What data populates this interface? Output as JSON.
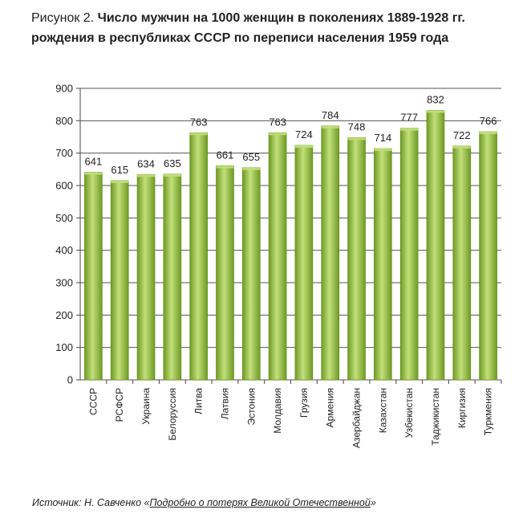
{
  "caption": {
    "lead": "Рисунок 2. ",
    "line1": "Число мужчин на 1000 женщин в поколениях 1889-1928 гг.",
    "line2": "рождения в республиках СССР по переписи населения 1959 года"
  },
  "source": {
    "prefix": "Источник: Н. Савченко «",
    "link_text": "Подробно о потерях Великой Отечественной",
    "suffix": "»"
  },
  "colors": {
    "bar_light": "#c2e07a",
    "bar_dark": "#6f9a24",
    "grid": "#555555",
    "axis": "#444444"
  },
  "chart_data": {
    "type": "bar",
    "title": "Число мужчин на 1000 женщин в поколениях 1889-1928 гг. рождения в республиках СССР по переписи населения 1959 года",
    "categories": [
      "СССР",
      "РСФСР",
      "Украина",
      "Белоруссия",
      "Литва",
      "Латвия",
      "Эстония",
      "Молдавия",
      "Грузия",
      "Армения",
      "Азербайджан",
      "Казахстан",
      "Узбекистан",
      "Таджикистан",
      "Киргизия",
      "Туркмения"
    ],
    "values": [
      641,
      615,
      634,
      635,
      763,
      661,
      655,
      763,
      724,
      784,
      748,
      714,
      777,
      832,
      722,
      766
    ],
    "ylim": [
      0,
      900
    ],
    "yticks": [
      0,
      100,
      200,
      300,
      400,
      500,
      600,
      700,
      800,
      900
    ],
    "xlabel": "",
    "ylabel": "",
    "grid": true
  }
}
